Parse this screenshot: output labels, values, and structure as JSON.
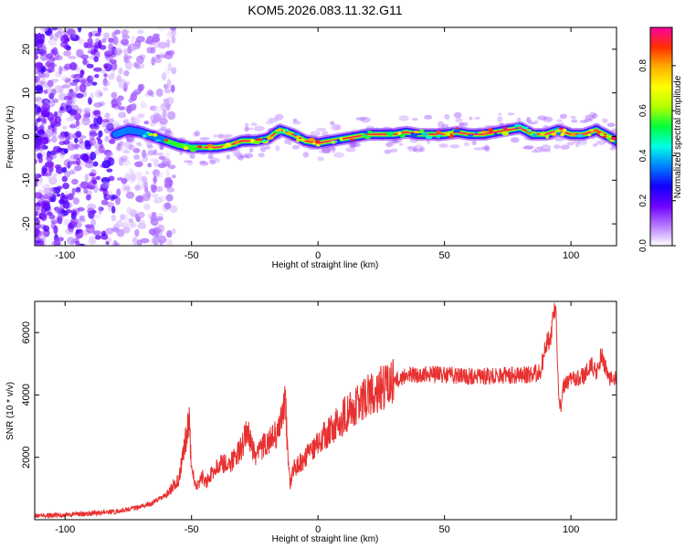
{
  "title": "KOM5.2026.083.11.32.G11",
  "chart_data": [
    {
      "type": "heatmap",
      "name": "spectrogram",
      "xlabel": "Height of straight line (km)",
      "ylabel": "Frequency (Hz)",
      "xlim": [
        -112,
        118
      ],
      "ylim": [
        -25,
        25
      ],
      "xticks": [
        -100,
        -50,
        0,
        50,
        100
      ],
      "yticks": [
        -20,
        -10,
        0,
        10,
        20
      ],
      "colorbar": {
        "label": "Normalized spectral amplitude",
        "range": [
          0.0,
          0.97
        ],
        "ticks": [
          0.0,
          0.2,
          0.4,
          0.6,
          0.8
        ],
        "colors": [
          "#ffffff",
          "#b57bff",
          "#6f00ff",
          "#1200ff",
          "#0080ff",
          "#00ffe6",
          "#00ff3a",
          "#b4ff00",
          "#ffff00",
          "#ffb000",
          "#ff3000",
          "#ff00a0"
        ]
      },
      "ridge_x": [
        -80,
        -75,
        -70,
        -65,
        -60,
        -55,
        -50,
        -45,
        -40,
        -35,
        -30,
        -25,
        -20,
        -15,
        -10,
        -5,
        0,
        5,
        10,
        15,
        20,
        25,
        30,
        35,
        40,
        45,
        50,
        55,
        60,
        65,
        70,
        75,
        80,
        85,
        90,
        95,
        100,
        105,
        110,
        115,
        118
      ],
      "ridge_freq": [
        0.5,
        1.5,
        1.0,
        0.0,
        -1.0,
        -2.0,
        -2.5,
        -2.5,
        -2.5,
        -2.0,
        -1.0,
        -1.0,
        -0.5,
        1.5,
        0.5,
        -1.0,
        -1.5,
        -1.0,
        -0.5,
        0.0,
        0.5,
        0.5,
        0.5,
        1.0,
        0.5,
        0.5,
        0.5,
        1.0,
        0.5,
        0.5,
        1.0,
        1.5,
        2.0,
        0.5,
        0.5,
        1.5,
        0.5,
        0.5,
        1.5,
        0.0,
        -1.0
      ]
    },
    {
      "type": "line",
      "name": "snr",
      "xlabel": "Height of straight line (km)",
      "ylabel": "SNR (10 * v/v)",
      "xlim": [
        -112,
        118
      ],
      "ylim": [
        0,
        7000
      ],
      "xticks": [
        -100,
        -50,
        0,
        50,
        100
      ],
      "yticks": [
        2000,
        4000,
        6000
      ],
      "color": "#e83030",
      "x": [
        -112,
        -100,
        -90,
        -80,
        -70,
        -65,
        -60,
        -55,
        -52,
        -51,
        -50,
        -48,
        -46,
        -44,
        -40,
        -35,
        -30,
        -28,
        -25,
        -20,
        -15,
        -13,
        -12,
        -11,
        -10,
        -5,
        0,
        5,
        10,
        15,
        20,
        25,
        30,
        35,
        40,
        50,
        60,
        70,
        80,
        85,
        88,
        90,
        92,
        93,
        94,
        95,
        96,
        97,
        100,
        105,
        108,
        110,
        112,
        115,
        118
      ],
      "y": [
        120,
        150,
        200,
        260,
        420,
        550,
        800,
        1300,
        2700,
        3300,
        1600,
        1000,
        1400,
        1200,
        1800,
        1800,
        2300,
        3000,
        2000,
        2500,
        2900,
        4000,
        2200,
        1100,
        1600,
        2000,
        2500,
        2900,
        3300,
        3700,
        4000,
        4200,
        4500,
        4600,
        4650,
        4650,
        4600,
        4600,
        4650,
        4650,
        4800,
        5600,
        5800,
        6500,
        7000,
        4200,
        3500,
        4300,
        4500,
        4600,
        5000,
        4700,
        5300,
        4500,
        4600
      ]
    }
  ]
}
